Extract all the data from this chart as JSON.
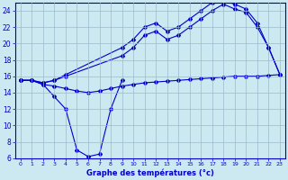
{
  "xlabel": "Graphe des températures (°c)",
  "bg_color": "#cce8f0",
  "line_color": "#0000cc",
  "grid_color": "#99bbcc",
  "xlim": [
    -0.5,
    23.5
  ],
  "ylim": [
    6,
    25
  ],
  "yticks": [
    6,
    8,
    10,
    12,
    14,
    16,
    18,
    20,
    22,
    24
  ],
  "xticks": [
    0,
    1,
    2,
    3,
    4,
    5,
    6,
    7,
    8,
    9,
    10,
    11,
    12,
    13,
    14,
    15,
    16,
    17,
    18,
    19,
    20,
    21,
    22,
    23
  ],
  "line_dip_x": [
    0,
    1,
    2,
    3,
    4,
    5,
    6,
    7,
    8,
    9
  ],
  "line_dip_y": [
    15.5,
    15.5,
    15.0,
    13.5,
    12.0,
    7.0,
    6.2,
    6.5,
    12.0,
    15.5
  ],
  "line_flat_x": [
    0,
    1,
    2,
    3,
    4,
    5,
    6,
    7,
    8,
    9,
    10,
    11,
    12,
    13,
    14,
    15,
    16,
    17,
    18,
    19,
    20,
    21,
    22,
    23
  ],
  "line_flat_y": [
    15.5,
    15.5,
    15.0,
    14.8,
    14.5,
    14.2,
    14.0,
    14.2,
    14.5,
    14.8,
    15.0,
    15.2,
    15.3,
    15.4,
    15.5,
    15.6,
    15.7,
    15.8,
    15.9,
    16.0,
    16.0,
    16.0,
    16.1,
    16.2
  ],
  "line_upper1_x": [
    0,
    1,
    2,
    3,
    4,
    9,
    10,
    11,
    12,
    13,
    14,
    15,
    16,
    17,
    18,
    19,
    20,
    21,
    22,
    23
  ],
  "line_upper1_y": [
    15.5,
    15.5,
    15.2,
    15.5,
    16.2,
    19.5,
    20.5,
    22.0,
    22.5,
    21.5,
    22.0,
    23.0,
    24.0,
    25.0,
    25.2,
    24.8,
    24.2,
    22.5,
    19.5,
    16.2
  ],
  "line_upper2_x": [
    0,
    1,
    2,
    3,
    4,
    9,
    10,
    11,
    12,
    13,
    14,
    15,
    16,
    17,
    18,
    19,
    20,
    21,
    22,
    23
  ],
  "line_upper2_y": [
    15.5,
    15.5,
    15.2,
    15.5,
    16.0,
    18.5,
    19.5,
    21.0,
    21.5,
    20.5,
    21.0,
    22.0,
    23.0,
    24.0,
    24.8,
    24.2,
    23.8,
    22.0,
    19.5,
    16.2
  ]
}
